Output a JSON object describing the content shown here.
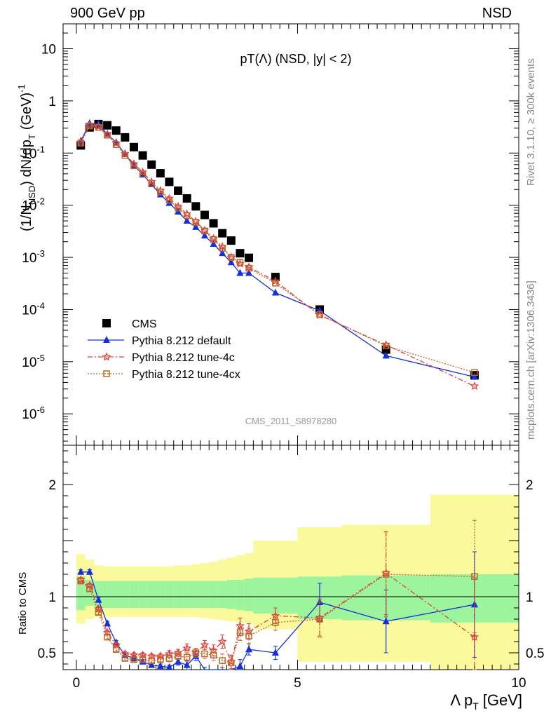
{
  "header": {
    "left": "900 GeV pp",
    "right": "NSD"
  },
  "chart_data": [
    {
      "type": "scatter",
      "title": "pT(Λ) (NSD, |y| < 2)",
      "ylabel_main": "(1/N",
      "ylabel_sub": "NSD",
      "ylabel_rest": ") dN/dp",
      "ylabel_sub2": "T",
      "ylabel_unit": "(GeV)",
      "ylabel_unit_sup": "-1",
      "yscale": "log",
      "ylim": [
        2.5e-07,
        30
      ],
      "xlim": [
        -0.3,
        10
      ],
      "yticks": [
        {
          "v": 10,
          "label": "10"
        },
        {
          "v": 1,
          "label": "1"
        },
        {
          "v": 0.1,
          "label": "10",
          "sup": "-1"
        },
        {
          "v": 0.01,
          "label": "10",
          "sup": "-2"
        },
        {
          "v": 0.001,
          "label": "10",
          "sup": "-3"
        },
        {
          "v": 0.0001,
          "label": "10",
          "sup": "-4"
        },
        {
          "v": 1e-05,
          "label": "10",
          "sup": "-5"
        },
        {
          "v": 1e-06,
          "label": "10",
          "sup": "-6"
        }
      ],
      "analysis_label": "CMS_2011_S8978280",
      "legend_position": "lower-left",
      "series": [
        {
          "name": "CMS",
          "color": "#000000",
          "marker": "square",
          "x": [
            0.1,
            0.3,
            0.5,
            0.7,
            0.9,
            1.1,
            1.3,
            1.5,
            1.7,
            1.9,
            2.1,
            2.3,
            2.5,
            2.7,
            2.9,
            3.1,
            3.3,
            3.5,
            3.7,
            3.9,
            4.5,
            5.5,
            7.0,
            9.0
          ],
          "y": [
            0.14,
            0.31,
            0.36,
            0.34,
            0.27,
            0.2,
            0.13,
            0.09,
            0.06,
            0.041,
            0.028,
            0.019,
            0.0135,
            0.0095,
            0.0065,
            0.0045,
            0.0029,
            0.0021,
            0.0012,
            0.00098,
            0.00042,
            0.0001,
            1.7e-05,
            5.5e-06
          ]
        },
        {
          "name": "Pythia 8.212 default",
          "color": "#1530d4",
          "marker": "triangle",
          "dash": "",
          "x": [
            0.1,
            0.3,
            0.5,
            0.7,
            0.9,
            1.1,
            1.3,
            1.5,
            1.7,
            1.9,
            2.1,
            2.3,
            2.5,
            2.7,
            2.9,
            3.1,
            3.3,
            3.5,
            3.7,
            3.9,
            4.5,
            5.5,
            7.0,
            9.0
          ],
          "y": [
            0.17,
            0.37,
            0.36,
            0.23,
            0.16,
            0.095,
            0.058,
            0.039,
            0.025,
            0.016,
            0.011,
            0.0075,
            0.005,
            0.0038,
            0.0026,
            0.0018,
            0.0012,
            0.0008,
            0.0005,
            0.0005,
            0.00021,
            9.5e-05,
            1.3e-05,
            5.1e-06
          ]
        },
        {
          "name": "Pythia 8.212 tune-4c",
          "color": "#e0403a",
          "marker": "star",
          "dash": "7,3,2,3",
          "x": [
            0.1,
            0.3,
            0.5,
            0.7,
            0.9,
            1.1,
            1.3,
            1.5,
            1.7,
            1.9,
            2.1,
            2.3,
            2.5,
            2.7,
            2.9,
            3.1,
            3.3,
            3.5,
            3.7,
            3.9,
            4.5,
            5.5,
            7.0,
            9.0
          ],
          "y": [
            0.16,
            0.34,
            0.32,
            0.23,
            0.155,
            0.097,
            0.062,
            0.043,
            0.028,
            0.019,
            0.0135,
            0.0095,
            0.0068,
            0.0049,
            0.0033,
            0.0023,
            0.0016,
            0.001,
            0.00075,
            0.00065,
            0.00035,
            7.8e-05,
            2.1e-05,
            3.4e-06
          ]
        },
        {
          "name": "Pythia 8.212 tune-4cx",
          "color": "#c0642a",
          "marker": "open-square",
          "dash": "2,2",
          "x": [
            0.1,
            0.3,
            0.5,
            0.7,
            0.9,
            1.1,
            1.3,
            1.5,
            1.7,
            1.9,
            2.1,
            2.3,
            2.5,
            2.7,
            2.9,
            3.1,
            3.3,
            3.5,
            3.7,
            3.9,
            4.5,
            5.5,
            7.0,
            9.0
          ],
          "y": [
            0.155,
            0.33,
            0.31,
            0.22,
            0.145,
            0.09,
            0.057,
            0.039,
            0.026,
            0.018,
            0.0125,
            0.0088,
            0.0063,
            0.0047,
            0.0032,
            0.0022,
            0.0015,
            0.001,
            0.0008,
            0.00062,
            0.00032,
            8e-05,
            2e-05,
            6.2e-06
          ]
        }
      ]
    },
    {
      "type": "line",
      "ylabel": "Ratio to CMS",
      "xlabel": "Λ p",
      "xlabel_sub": "T",
      "xlabel_unit": "[GeV]",
      "xlim": [
        -0.3,
        10
      ],
      "ylim": [
        0.35,
        2.35
      ],
      "xticks": [
        0,
        5,
        10
      ],
      "yticks": [
        0.5,
        1,
        2
      ],
      "ytick_labels": [
        "0.5",
        "1",
        "2"
      ],
      "bands": {
        "edges": [
          0.0,
          0.2,
          0.4,
          0.6,
          0.8,
          1.0,
          1.2,
          1.4,
          1.6,
          1.8,
          2.0,
          2.2,
          2.4,
          2.6,
          2.8,
          3.0,
          3.2,
          3.4,
          3.6,
          3.8,
          4.0,
          5.0,
          6.0,
          8.0,
          10.0
        ],
        "inner_up": [
          1.18,
          1.15,
          1.14,
          1.14,
          1.14,
          1.14,
          1.14,
          1.14,
          1.14,
          1.14,
          1.14,
          1.14,
          1.14,
          1.14,
          1.14,
          1.14,
          1.14,
          1.15,
          1.15,
          1.16,
          1.17,
          1.18,
          1.19,
          1.2,
          1.53
        ],
        "inner_dn": [
          0.88,
          0.92,
          0.9,
          0.9,
          0.9,
          0.9,
          0.9,
          0.9,
          0.9,
          0.9,
          0.9,
          0.9,
          0.9,
          0.9,
          0.9,
          0.9,
          0.9,
          0.89,
          0.88,
          0.87,
          0.85,
          0.8,
          0.79,
          0.77,
          0.58
        ],
        "outer_up": [
          1.38,
          1.33,
          1.28,
          1.27,
          1.27,
          1.27,
          1.27,
          1.27,
          1.27,
          1.27,
          1.27,
          1.28,
          1.28,
          1.29,
          1.3,
          1.31,
          1.33,
          1.35,
          1.37,
          1.39,
          1.5,
          1.62,
          1.64,
          1.91,
          1.91
        ],
        "outer_dn": [
          0.76,
          0.8,
          0.82,
          0.82,
          0.82,
          0.82,
          0.82,
          0.82,
          0.82,
          0.82,
          0.82,
          0.82,
          0.82,
          0.82,
          0.81,
          0.8,
          0.79,
          0.78,
          0.77,
          0.76,
          0.71,
          0.42,
          0.42,
          0.35,
          0.35
        ],
        "inner_color": "#9cf59c",
        "outer_color": "#fafa9c"
      },
      "series": [
        {
          "name": "Pythia 8.212 default",
          "color": "#1530d4",
          "marker": "triangle",
          "dash": "",
          "x": [
            0.1,
            0.3,
            0.5,
            0.7,
            0.9,
            1.1,
            1.3,
            1.5,
            1.7,
            1.9,
            2.1,
            2.3,
            2.5,
            2.7,
            2.9,
            3.1,
            3.3,
            3.5,
            3.7,
            3.9,
            4.5,
            5.5,
            7.0,
            9.0
          ],
          "y": [
            1.22,
            1.22,
            0.97,
            0.76,
            0.59,
            0.48,
            0.45,
            0.42,
            0.39,
            0.38,
            0.37,
            0.42,
            0.39,
            0.47,
            0.33,
            0.3,
            0.32,
            0.3,
            0.38,
            0.53,
            0.5,
            0.95,
            0.78,
            0.93
          ],
          "err": [
            0.02,
            0.02,
            0.02,
            0.02,
            0.02,
            0.02,
            0.02,
            0.02,
            0.02,
            0.02,
            0.02,
            0.03,
            0.04,
            0.04,
            0.04,
            0.05,
            0.05,
            0.05,
            0.06,
            0.05,
            0.06,
            0.17,
            0.28,
            0.47
          ]
        },
        {
          "name": "Pythia 8.212 tune-4c",
          "color": "#e0403a",
          "marker": "star",
          "dash": "7,3,2,3",
          "x": [
            0.1,
            0.3,
            0.5,
            0.7,
            0.9,
            1.1,
            1.3,
            1.5,
            1.7,
            1.9,
            2.1,
            2.3,
            2.5,
            2.7,
            2.9,
            3.1,
            3.3,
            3.5,
            3.7,
            3.9,
            4.5,
            5.5,
            7.0,
            9.0
          ],
          "y": [
            1.15,
            1.1,
            0.89,
            0.68,
            0.57,
            0.49,
            0.48,
            0.48,
            0.47,
            0.47,
            0.49,
            0.5,
            0.54,
            0.5,
            0.57,
            0.52,
            0.6,
            0.42,
            0.74,
            0.69,
            0.83,
            0.81,
            1.21,
            0.64
          ],
          "err": [
            0.02,
            0.02,
            0.02,
            0.02,
            0.02,
            0.02,
            0.02,
            0.02,
            0.02,
            0.02,
            0.03,
            0.03,
            0.04,
            0.04,
            0.04,
            0.05,
            0.06,
            0.06,
            0.07,
            0.07,
            0.07,
            0.17,
            0.37,
            0.53
          ]
        },
        {
          "name": "Pythia 8.212 tune-4cx",
          "color": "#c0642a",
          "marker": "open-square",
          "dash": "2,2",
          "x": [
            0.1,
            0.3,
            0.5,
            0.7,
            0.9,
            1.1,
            1.3,
            1.5,
            1.7,
            1.9,
            2.1,
            2.3,
            2.5,
            2.7,
            2.9,
            3.1,
            3.3,
            3.5,
            3.7,
            3.9,
            4.5,
            5.5,
            7.0,
            9.0
          ],
          "y": [
            1.14,
            1.07,
            0.86,
            0.64,
            0.53,
            0.45,
            0.44,
            0.44,
            0.43,
            0.44,
            0.45,
            0.47,
            0.46,
            0.5,
            0.49,
            0.48,
            0.43,
            0.41,
            0.68,
            0.65,
            0.77,
            0.8,
            1.2,
            1.18
          ],
          "err": [
            0.02,
            0.02,
            0.02,
            0.02,
            0.02,
            0.02,
            0.02,
            0.02,
            0.02,
            0.02,
            0.03,
            0.03,
            0.04,
            0.04,
            0.04,
            0.05,
            0.06,
            0.06,
            0.07,
            0.07,
            0.07,
            0.15,
            0.38,
            0.5
          ]
        }
      ]
    }
  ],
  "side_labels": {
    "rivet": "Rivet 3.1.10, ≥ 300k events",
    "mcplots": "mcplots.cern.ch [arXiv:1306.3436]"
  }
}
